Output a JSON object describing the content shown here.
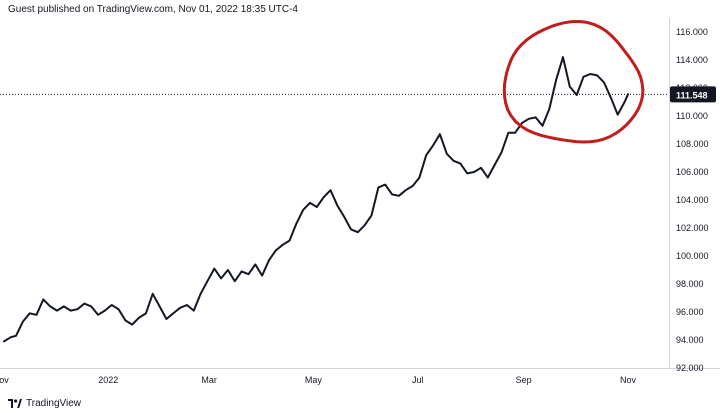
{
  "header": {
    "published_text": "Guest published on TradingView.com, Nov 01, 2022 18:35 UTC-4"
  },
  "footer": {
    "brand_label": "TradingView",
    "logo_icon": "tradingview-logo-icon"
  },
  "colors": {
    "line": "#131722",
    "annotation_circle": "#c31c1c",
    "price_label_bg": "#131722",
    "price_label_text": "#ffffff",
    "grid": "#e0e3eb"
  },
  "chart_data": {
    "type": "line",
    "title": "",
    "xlabel": "",
    "ylabel": "",
    "ylim": [
      92,
      117
    ],
    "y_ticks": [
      "94.000",
      "96.000",
      "98.000",
      "100.000",
      "102.000",
      "104.000",
      "106.000",
      "108.000",
      "110.000",
      "112.000",
      "114.000",
      "116.000"
    ],
    "y_ticks_partial": [
      "92.000"
    ],
    "x_ticks": [
      {
        "label": "ov",
        "x": "2021-11-01"
      },
      {
        "label": "2022",
        "x": "2022-01-01"
      },
      {
        "label": "Mar",
        "x": "2022-03-01"
      },
      {
        "label": "May",
        "x": "2022-05-01"
      },
      {
        "label": "Jul",
        "x": "2022-07-01"
      },
      {
        "label": "Sep",
        "x": "2022-09-01"
      },
      {
        "label": "Nov",
        "x": "2022-11-01"
      }
    ],
    "xlim": [
      "2021-11-01",
      "2022-11-25"
    ],
    "last_price": 111.548,
    "last_price_label": "111.548",
    "grid": false,
    "annotation": "hand-drawn red circle around Sep–Oct 2022 peak",
    "annotation_range": [
      "2022-08-20",
      "2022-11-05"
    ],
    "series": [
      {
        "x": [
          "2021-11-01",
          "2021-11-05",
          "2021-11-08",
          "2021-11-12",
          "2021-11-16",
          "2021-11-20",
          "2021-11-24",
          "2021-11-28",
          "2021-12-02",
          "2021-12-06",
          "2021-12-10",
          "2021-12-14",
          "2021-12-18",
          "2021-12-22",
          "2021-12-26",
          "2021-12-30",
          "2022-01-03",
          "2022-01-07",
          "2022-01-11",
          "2022-01-15",
          "2022-01-19",
          "2022-01-23",
          "2022-01-27",
          "2022-01-31",
          "2022-02-04",
          "2022-02-08",
          "2022-02-12",
          "2022-02-16",
          "2022-02-20",
          "2022-02-24",
          "2022-02-28",
          "2022-03-04",
          "2022-03-08",
          "2022-03-12",
          "2022-03-16",
          "2022-03-20",
          "2022-03-24",
          "2022-03-28",
          "2022-04-01",
          "2022-04-05",
          "2022-04-09",
          "2022-04-13",
          "2022-04-17",
          "2022-04-21",
          "2022-04-25",
          "2022-04-29",
          "2022-05-03",
          "2022-05-07",
          "2022-05-11",
          "2022-05-15",
          "2022-05-19",
          "2022-05-23",
          "2022-05-27",
          "2022-05-31",
          "2022-06-04",
          "2022-06-08",
          "2022-06-12",
          "2022-06-16",
          "2022-06-20",
          "2022-06-24",
          "2022-06-28",
          "2022-07-02",
          "2022-07-06",
          "2022-07-10",
          "2022-07-14",
          "2022-07-18",
          "2022-07-22",
          "2022-07-26",
          "2022-07-30",
          "2022-08-03",
          "2022-08-07",
          "2022-08-11",
          "2022-08-15",
          "2022-08-19",
          "2022-08-23",
          "2022-08-27",
          "2022-08-31",
          "2022-09-04",
          "2022-09-08",
          "2022-09-12",
          "2022-09-16",
          "2022-09-20",
          "2022-09-24",
          "2022-09-28",
          "2022-10-02",
          "2022-10-06",
          "2022-10-10",
          "2022-10-14",
          "2022-10-18",
          "2022-10-22",
          "2022-10-26",
          "2022-10-30",
          "2022-11-01"
        ],
        "values": [
          93.9,
          94.2,
          94.3,
          95.3,
          95.9,
          95.8,
          96.9,
          96.4,
          96.1,
          96.4,
          96.1,
          96.2,
          96.6,
          96.4,
          95.8,
          96.1,
          96.5,
          96.2,
          95.4,
          95.1,
          95.6,
          95.9,
          97.3,
          96.4,
          95.5,
          95.9,
          96.3,
          96.5,
          96.1,
          97.3,
          98.2,
          99.1,
          98.4,
          99.0,
          98.2,
          98.9,
          98.7,
          99.4,
          98.6,
          99.7,
          100.4,
          100.8,
          101.1,
          102.3,
          103.3,
          103.8,
          103.5,
          104.2,
          104.7,
          103.6,
          102.8,
          101.9,
          101.7,
          102.2,
          102.9,
          104.9,
          105.1,
          104.4,
          104.3,
          104.7,
          105.0,
          105.6,
          107.2,
          107.9,
          108.7,
          107.3,
          106.8,
          106.6,
          105.9,
          106.0,
          106.3,
          105.6,
          106.5,
          107.4,
          108.8,
          108.8,
          109.5,
          109.8,
          109.9,
          109.3,
          110.5,
          112.6,
          114.2,
          112.1,
          111.5,
          112.8,
          113.0,
          112.9,
          112.4,
          111.3,
          110.1,
          111.0,
          111.548
        ]
      }
    ]
  }
}
